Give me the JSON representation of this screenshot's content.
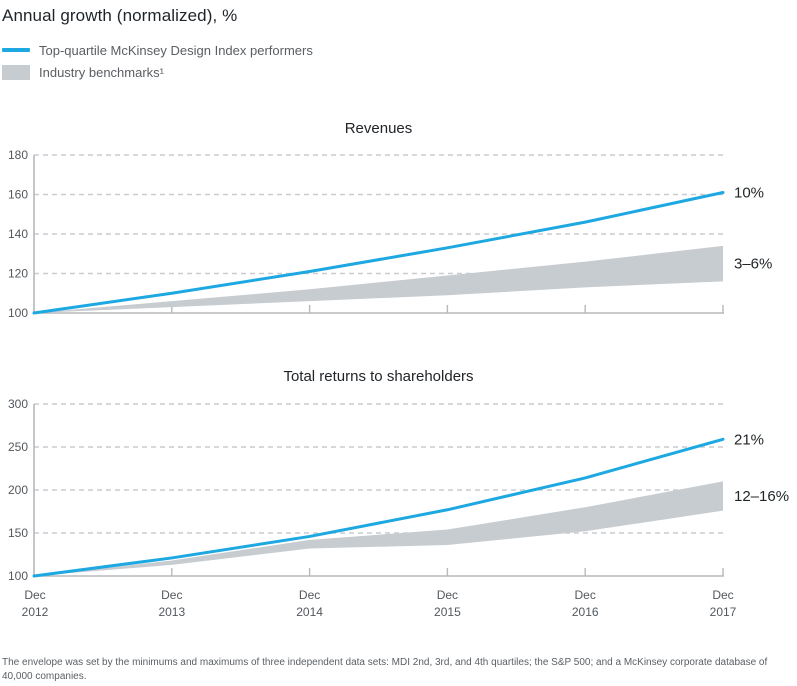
{
  "page_title": "Annual growth (normalized), %",
  "legend": {
    "items": [
      {
        "label": "Top-quartile McKinsey Design Index performers",
        "swatch": "line",
        "color": "#1da8e1"
      },
      {
        "label": "Industry benchmarks¹",
        "swatch": "band",
        "color": "#c7ccd1"
      }
    ]
  },
  "colors": {
    "line_blue": "#1da8e1",
    "band_gray": "#c7ccd1",
    "text_dark": "#222629",
    "text_gray": "#53585d",
    "grid": "#c9cccf",
    "axis": "#b5b9bc",
    "background": "#ffffff"
  },
  "chart_data": [
    {
      "type": "line",
      "title": "Revenues",
      "categories": [
        "Dec 2012",
        "Dec 2013",
        "Dec 2014",
        "Dec 2015",
        "Dec 2016",
        "Dec 2017"
      ],
      "xlabel": "",
      "ylabel": "Annual growth (normalized), %",
      "ylim": [
        100,
        180
      ],
      "yticks": [
        100,
        120,
        140,
        160,
        180
      ],
      "grid": "horizontal-dashed",
      "legend_position": "top-left-of-page",
      "show_x_labels": false,
      "series": [
        {
          "name": "Top-quartile McKinsey Design Index performers",
          "type": "line",
          "color": "#1da8e1",
          "values": [
            100,
            110,
            121,
            133,
            146,
            161
          ],
          "end_label": "10%"
        },
        {
          "name": "Industry benchmarks",
          "type": "band",
          "color": "#c7ccd1",
          "upper": [
            100,
            106,
            112,
            119,
            126,
            134
          ],
          "lower": [
            100,
            103,
            106,
            109,
            113,
            116
          ],
          "end_label": "3–6%"
        }
      ]
    },
    {
      "type": "line",
      "title": "Total returns to shareholders",
      "categories": [
        "Dec 2012",
        "Dec 2013",
        "Dec 2014",
        "Dec 2015",
        "Dec 2016",
        "Dec 2017"
      ],
      "xlabel": "",
      "ylabel": "Annual growth (normalized), %",
      "ylim": [
        100,
        300
      ],
      "yticks": [
        100,
        150,
        200,
        250,
        300
      ],
      "grid": "horizontal-dashed",
      "show_x_labels": true,
      "series": [
        {
          "name": "Top-quartile McKinsey Design Index performers",
          "type": "line",
          "color": "#1da8e1",
          "values": [
            100,
            121,
            146,
            177,
            214,
            259
          ],
          "end_label": "21%"
        },
        {
          "name": "Industry benchmarks",
          "type": "band",
          "color": "#c7ccd1",
          "upper": [
            100,
            118,
            142,
            154,
            180,
            210
          ],
          "lower": [
            100,
            113,
            132,
            136,
            152,
            176
          ],
          "end_label": "12–16%"
        }
      ]
    }
  ],
  "footnote": "The envelope was set by the minimums and maximums of three independent data sets: MDI 2nd, 3rd, and 4th quartiles; the S&P 500; and a McKinsey corporate database of 40,000 companies."
}
